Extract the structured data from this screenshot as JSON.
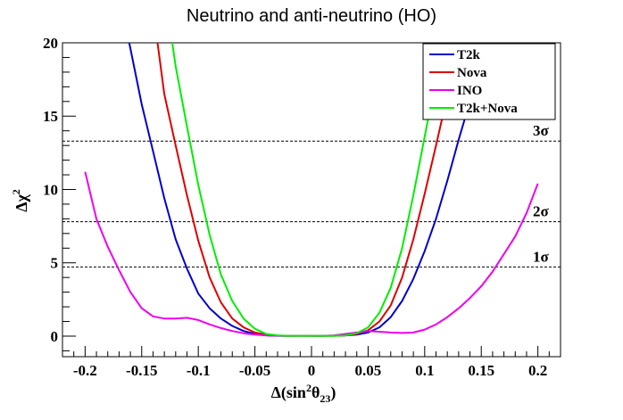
{
  "chart_data": {
    "type": "line",
    "title": "Neutrino and anti-neutrino (HO)",
    "xlabel_main": "Δ(sin",
    "xlabel_sup": "2",
    "xlabel_theta": "θ",
    "xlabel_sub": "23",
    "xlabel_close": ")",
    "ylabel_main": "Δχ",
    "ylabel_sup": "2",
    "xlim": [
      -0.22,
      0.22
    ],
    "ylim": [
      -1.4,
      20
    ],
    "xticks": [
      -0.2,
      -0.15,
      -0.1,
      -0.05,
      0,
      0.05,
      0.1,
      0.15,
      0.2
    ],
    "xtick_labels": [
      "-0.2",
      "-0.15",
      "-0.1",
      "-0.05",
      "0",
      "0.05",
      "0.1",
      "0.15",
      "0.2"
    ],
    "yticks": [
      0,
      5,
      10,
      15,
      20
    ],
    "ytick_labels": [
      "0",
      "5",
      "10",
      "15",
      "20"
    ],
    "grid": false,
    "legend_position": "top-right",
    "reference_lines": [
      {
        "label": "1σ",
        "y": 4.72
      },
      {
        "label": "2σ",
        "y": 7.8
      },
      {
        "label": "3σ",
        "y": 13.3
      }
    ],
    "series": [
      {
        "name": "T2k",
        "color": "#0000cc",
        "x": [
          -0.161,
          -0.15,
          -0.14,
          -0.13,
          -0.12,
          -0.11,
          -0.1,
          -0.09,
          -0.08,
          -0.07,
          -0.06,
          -0.05,
          -0.04,
          -0.03,
          -0.02,
          -0.01,
          0,
          0.01,
          0.02,
          0.03,
          0.04,
          0.05,
          0.06,
          0.07,
          0.08,
          0.09,
          0.1,
          0.11,
          0.12,
          0.13,
          0.14,
          0.15,
          0.155,
          0.16
        ],
        "values": [
          20,
          15.8,
          12.6,
          9.4,
          6.6,
          4.6,
          2.9,
          1.9,
          1.2,
          0.7,
          0.35,
          0.15,
          0.05,
          0.02,
          0.02,
          0.03,
          0.02,
          0.02,
          0.03,
          0.05,
          0.1,
          0.25,
          0.6,
          1.3,
          2.4,
          3.9,
          5.8,
          8.0,
          10.6,
          13.4,
          16.0,
          17.3,
          17.6,
          17.7
        ]
      },
      {
        "name": "Nova",
        "color": "#dd0000",
        "x": [
          -0.136,
          -0.13,
          -0.12,
          -0.11,
          -0.1,
          -0.09,
          -0.08,
          -0.07,
          -0.06,
          -0.05,
          -0.04,
          -0.03,
          -0.02,
          -0.01,
          0,
          0.01,
          0.02,
          0.03,
          0.04,
          0.05,
          0.06,
          0.07,
          0.08,
          0.09,
          0.1,
          0.11,
          0.12,
          0.13,
          0.14
        ],
        "values": [
          20,
          16.5,
          13.0,
          9.6,
          6.5,
          4.0,
          2.3,
          1.2,
          0.6,
          0.25,
          0.1,
          0.03,
          0.02,
          0.02,
          0.02,
          0.02,
          0.02,
          0.05,
          0.15,
          0.4,
          1.0,
          2.1,
          4.0,
          6.6,
          9.7,
          13.0,
          16.4,
          18.6,
          19.3
        ]
      },
      {
        "name": "INO",
        "color": "#ee00ee",
        "x": [
          -0.2,
          -0.19,
          -0.18,
          -0.17,
          -0.16,
          -0.15,
          -0.14,
          -0.13,
          -0.12,
          -0.11,
          -0.1,
          -0.09,
          -0.08,
          -0.07,
          -0.06,
          -0.05,
          -0.04,
          -0.03,
          -0.02,
          -0.01,
          0,
          0.01,
          0.02,
          0.03,
          0.04,
          0.05,
          0.06,
          0.07,
          0.08,
          0.09,
          0.1,
          0.11,
          0.12,
          0.13,
          0.14,
          0.15,
          0.16,
          0.17,
          0.18,
          0.19,
          0.2
        ],
        "values": [
          11.2,
          8.0,
          6.1,
          4.5,
          3.0,
          1.9,
          1.35,
          1.2,
          1.2,
          1.25,
          1.1,
          0.8,
          0.55,
          0.35,
          0.2,
          0.1,
          0.05,
          0.03,
          0.02,
          0.02,
          0.02,
          0.02,
          0.05,
          0.15,
          0.25,
          0.35,
          0.3,
          0.25,
          0.22,
          0.25,
          0.45,
          0.8,
          1.3,
          1.9,
          2.6,
          3.4,
          4.4,
          5.6,
          6.8,
          8.4,
          10.4
        ]
      },
      {
        "name": "T2k+Nova",
        "color": "#00ee00",
        "x": [
          -0.123,
          -0.12,
          -0.11,
          -0.1,
          -0.09,
          -0.08,
          -0.07,
          -0.06,
          -0.05,
          -0.04,
          -0.03,
          -0.02,
          -0.01,
          0,
          0.01,
          0.02,
          0.03,
          0.04,
          0.05,
          0.06,
          0.07,
          0.08,
          0.09,
          0.1,
          0.11,
          0.118
        ],
        "values": [
          20,
          18.4,
          14.3,
          10.3,
          6.9,
          4.2,
          2.4,
          1.2,
          0.5,
          0.15,
          0.05,
          0.02,
          0.02,
          0.02,
          0.02,
          0.02,
          0.05,
          0.2,
          0.6,
          1.6,
          3.3,
          6.0,
          9.6,
          13.6,
          17.6,
          18.6
        ]
      }
    ]
  }
}
